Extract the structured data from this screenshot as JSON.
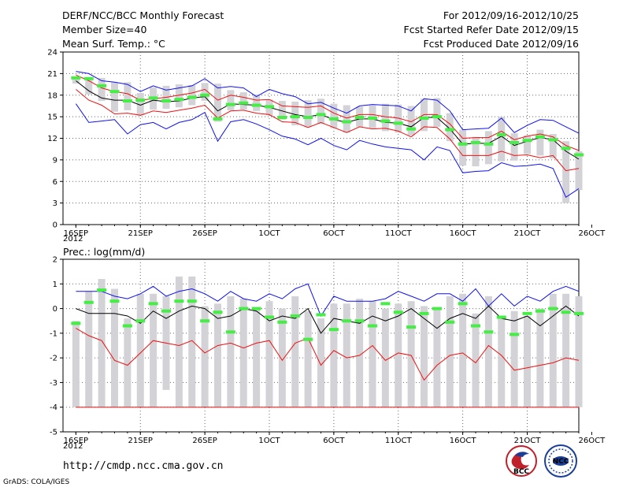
{
  "header": {
    "title": "DERF/NCC/BCC Monthly Forecast",
    "member_size": "Member Size=40",
    "variable": "Mean Surf. Temp.: °C",
    "period": "For 2012/09/16-2012/10/25",
    "fcst_started": "Fcst Started Refer Date 2012/09/15",
    "fcst_produced": "Fcst Produced Date 2012/09/16"
  },
  "footer": {
    "url": "http://cmdp.ncc.cma.gov.cn",
    "grads": "GrADS: COLA/IGES",
    "logo_bcc_text": "BCC",
    "logo_ncc_text": "NCC"
  },
  "colors": {
    "box": "#d3d3d7",
    "median": "#44ee44",
    "mean": "#000000",
    "upper": "#1010ee",
    "lower": "#ee1010",
    "grid": "#666666"
  },
  "chart_data": [
    {
      "type": "line",
      "title": "Mean Surf. Temp.: °C",
      "ylim": [
        0,
        24
      ],
      "yticks": [
        "0",
        "3",
        "6",
        "9",
        "12",
        "15",
        "18",
        "21",
        "24"
      ],
      "xlim": [
        0,
        40
      ],
      "xtick_labels": [
        "16SEP",
        "21SEP",
        "26SEP",
        "1OCT",
        "6OCT",
        "11OCT",
        "16OCT",
        "21OCT",
        "26OCT"
      ],
      "x_sub_label": "2012",
      "grid": true,
      "x": [
        1,
        2,
        3,
        4,
        5,
        6,
        7,
        8,
        9,
        10,
        11,
        12,
        13,
        14,
        15,
        16,
        17,
        18,
        19,
        20,
        21,
        22,
        23,
        24,
        25,
        26,
        27,
        28,
        29,
        30,
        31,
        32,
        33,
        34,
        35,
        36,
        37,
        38,
        39,
        40
      ],
      "series": [
        {
          "name": "max",
          "color": "#1010ee",
          "values": [
            21.3,
            21.0,
            20.0,
            19.8,
            19.5,
            18.5,
            19.3,
            18.7,
            19.0,
            19.3,
            20.3,
            19.0,
            19.2,
            19.0,
            17.8,
            18.8,
            18.2,
            17.8,
            16.8,
            17.0,
            16.2,
            15.5,
            16.5,
            16.7,
            16.6,
            16.5,
            15.8,
            17.5,
            17.3,
            15.8,
            13.2,
            13.3,
            13.4,
            14.8,
            12.8,
            13.8,
            14.6,
            14.5,
            13.6,
            12.7
          ]
        },
        {
          "name": "upper",
          "color": "#ee1010",
          "values": [
            20.8,
            20.0,
            19.0,
            18.5,
            18.2,
            17.3,
            17.5,
            17.7,
            18.0,
            18.3,
            18.8,
            17.3,
            18.0,
            17.7,
            17.3,
            17.4,
            16.5,
            16.4,
            16.3,
            16.5,
            15.5,
            14.8,
            15.3,
            15.3,
            15.0,
            14.8,
            14.3,
            15.3,
            15.3,
            14.0,
            12.0,
            12.1,
            12.1,
            13.0,
            11.8,
            12.3,
            12.6,
            12.2,
            11.0,
            10.3
          ]
        },
        {
          "name": "mean",
          "color": "#000000",
          "values": [
            20.0,
            18.6,
            17.6,
            17.3,
            17.3,
            16.6,
            17.3,
            17.1,
            17.2,
            17.6,
            17.8,
            15.8,
            16.8,
            16.7,
            16.6,
            16.3,
            15.8,
            15.3,
            15.0,
            15.3,
            14.6,
            14.2,
            14.7,
            14.7,
            14.2,
            14.1,
            13.6,
            14.9,
            14.9,
            13.3,
            11.2,
            11.3,
            11.3,
            12.3,
            11.0,
            11.6,
            12.1,
            11.8,
            10.2,
            9.1
          ]
        },
        {
          "name": "lower",
          "color": "#ee1010",
          "values": [
            18.8,
            17.3,
            16.6,
            15.4,
            15.5,
            15.2,
            15.8,
            15.6,
            15.9,
            16.2,
            16.6,
            14.8,
            15.8,
            15.9,
            15.5,
            15.3,
            14.3,
            14.2,
            13.5,
            14.2,
            13.5,
            12.8,
            13.6,
            13.3,
            13.4,
            13.0,
            12.2,
            13.6,
            13.5,
            11.9,
            9.6,
            9.6,
            9.6,
            10.2,
            9.6,
            9.7,
            9.3,
            9.6,
            7.5,
            7.8
          ]
        },
        {
          "name": "min",
          "color": "#1010ee",
          "values": [
            16.8,
            14.2,
            14.4,
            14.6,
            12.6,
            13.9,
            14.2,
            13.3,
            14.2,
            14.6,
            15.6,
            11.6,
            14.3,
            14.6,
            14.0,
            13.2,
            12.3,
            11.9,
            11.1,
            12.0,
            11.0,
            10.4,
            11.7,
            11.2,
            10.8,
            10.6,
            10.4,
            9.0,
            10.8,
            10.3,
            7.2,
            7.4,
            7.5,
            8.6,
            8.1,
            8.2,
            8.4,
            7.8,
            3.8,
            5.0
          ]
        }
      ],
      "box": {
        "name": "inter-quartile",
        "color": "#d3d3d7",
        "low": [
          19.6,
          18.1,
          17.2,
          15.7,
          15.9,
          15.2,
          16.0,
          16.1,
          16.3,
          16.6,
          17.2,
          14.3,
          15.9,
          16.0,
          15.8,
          15.2,
          14.6,
          13.8,
          13.6,
          14.0,
          13.4,
          12.8,
          13.6,
          13.4,
          13.0,
          12.8,
          12.4,
          13.0,
          13.6,
          11.6,
          8.2,
          8.1,
          8.4,
          8.8,
          8.9,
          9.8,
          9.6,
          9.2,
          3.0,
          4.8
        ],
        "high": [
          20.6,
          20.1,
          20.4,
          19.8,
          19.8,
          18.3,
          19.1,
          19.3,
          19.5,
          19.4,
          19.7,
          19.6,
          18.7,
          18.4,
          18.1,
          17.4,
          17.2,
          17.1,
          17.3,
          17.5,
          16.8,
          16.6,
          16.4,
          16.6,
          16.8,
          16.7,
          16.5,
          17.5,
          17.6,
          15.5,
          13.2,
          12.2,
          13.0,
          15.0,
          12.7,
          12.4,
          13.2,
          12.6,
          11.6,
          10.2
        ]
      },
      "median": [
        20.4,
        20.3,
        19.3,
        18.5,
        17.2,
        17.3,
        17.6,
        17.2,
        17.4,
        17.7,
        18.0,
        14.7,
        16.7,
        16.9,
        16.6,
        16.4,
        14.9,
        15.0,
        14.9,
        15.3,
        14.7,
        14.3,
        14.9,
        14.8,
        14.4,
        14.1,
        13.3,
        14.8,
        15.0,
        13.2,
        11.2,
        11.4,
        11.2,
        12.5,
        11.4,
        11.7,
        12.2,
        11.8,
        10.6,
        9.7
      ]
    },
    {
      "type": "line",
      "title": "Prec.: log(mm/d)",
      "ylim": [
        -5,
        2
      ],
      "yticks": [
        "-5",
        "-4",
        "-3",
        "-2",
        "-1",
        "0",
        "1",
        "2"
      ],
      "xlim": [
        0,
        40
      ],
      "xtick_labels": [
        "16SEP",
        "21SEP",
        "26SEP",
        "1OCT",
        "6OCT",
        "11OCT",
        "16OCT",
        "21OCT",
        "26OCT"
      ],
      "x_sub_label": "2012",
      "grid": true,
      "x": [
        1,
        2,
        3,
        4,
        5,
        6,
        7,
        8,
        9,
        10,
        11,
        12,
        13,
        14,
        15,
        16,
        17,
        18,
        19,
        20,
        21,
        22,
        23,
        24,
        25,
        26,
        27,
        28,
        29,
        30,
        31,
        32,
        33,
        34,
        35,
        36,
        37,
        38,
        39,
        40
      ],
      "series": [
        {
          "name": "upper",
          "color": "#1010ee",
          "values": [
            0.7,
            0.7,
            0.7,
            0.5,
            0.4,
            0.6,
            0.9,
            0.5,
            0.7,
            0.8,
            0.6,
            0.3,
            0.7,
            0.4,
            0.3,
            0.6,
            0.4,
            0.8,
            1.0,
            -0.3,
            0.5,
            0.3,
            0.3,
            0.3,
            0.4,
            0.7,
            0.5,
            0.3,
            0.6,
            0.6,
            0.3,
            0.8,
            0.1,
            0.6,
            0.1,
            0.5,
            0.3,
            0.7,
            0.9,
            0.7
          ]
        },
        {
          "name": "mean",
          "color": "#000000",
          "values": [
            0.0,
            -0.2,
            -0.2,
            -0.2,
            -0.3,
            -0.6,
            -0.1,
            -0.4,
            -0.1,
            0.1,
            0.0,
            -0.4,
            -0.3,
            0.0,
            -0.1,
            -0.5,
            -0.3,
            -0.4,
            0.0,
            -1.0,
            -0.4,
            -0.5,
            -0.6,
            -0.3,
            -0.5,
            -0.3,
            0.0,
            -0.4,
            -0.8,
            -0.4,
            -0.2,
            -0.4,
            0.1,
            -0.4,
            -0.5,
            -0.3,
            -0.7,
            -0.3,
            0.1,
            -0.3
          ]
        },
        {
          "name": "lower",
          "color": "#ee1010",
          "values": [
            -0.8,
            -1.1,
            -1.3,
            -2.1,
            -2.3,
            -1.8,
            -1.3,
            -1.4,
            -1.5,
            -1.3,
            -1.8,
            -1.5,
            -1.4,
            -1.6,
            -1.4,
            -1.3,
            -2.1,
            -1.4,
            -1.2,
            -2.3,
            -1.7,
            -2.0,
            -1.9,
            -1.5,
            -2.1,
            -1.8,
            -1.9,
            -2.9,
            -2.3,
            -1.9,
            -1.8,
            -2.2,
            -1.5,
            -1.9,
            -2.5,
            -2.4,
            -2.3,
            -2.2,
            -2.0,
            -2.1
          ]
        },
        {
          "name": "min",
          "color": "#ee1010",
          "values": [
            -4,
            -4,
            -4,
            -4,
            -4,
            -4,
            -4,
            -4,
            -4,
            -4,
            -4,
            -4,
            -4,
            -4,
            -4,
            -4,
            -4,
            -4,
            -4,
            -4,
            -4,
            -4,
            -4,
            -4,
            -4,
            -4,
            -4,
            -4,
            -4,
            -4,
            -4,
            -4,
            -4,
            -4,
            -4,
            -4,
            -4,
            -4,
            -4,
            -4
          ]
        }
      ],
      "box": {
        "name": "inter-quartile",
        "color": "#d3d3d7",
        "low": [
          -4,
          -4,
          -4,
          -4,
          -4,
          -4,
          -4,
          -3.3,
          -4,
          -4,
          -4,
          -4,
          -4,
          -4,
          -4,
          -4,
          -4,
          -4,
          -4,
          -4,
          -4,
          -4,
          -4,
          -4,
          -4,
          -4,
          -4,
          -4,
          -4,
          -4,
          -4,
          -4,
          -4,
          -4,
          -4,
          -4,
          -4,
          -4,
          -4,
          -4
        ],
        "high": [
          -0.5,
          0.7,
          1.2,
          0.8,
          -0.4,
          0.6,
          0.6,
          0.5,
          1.3,
          1.3,
          0.1,
          0.2,
          0.5,
          0.4,
          0.0,
          0.3,
          0.0,
          0.5,
          -0.1,
          -0.4,
          0.2,
          0.2,
          0.4,
          0.3,
          0.0,
          0.2,
          0.3,
          0.1,
          0.0,
          0.5,
          0.6,
          -0.2,
          0.5,
          -0.4,
          -0.1,
          -0.3,
          0.0,
          0.6,
          0.6,
          0.5
        ]
      },
      "median": [
        -0.6,
        0.25,
        0.75,
        0.3,
        -0.7,
        -0.5,
        0.2,
        -0.1,
        0.3,
        0.3,
        -0.5,
        -0.15,
        -0.95,
        0.0,
        0.0,
        -0.35,
        -0.55,
        -0.3,
        -1.25,
        -0.25,
        -0.85,
        -0.5,
        -0.5,
        -0.7,
        0.2,
        -0.15,
        -0.75,
        -0.2,
        0.0,
        -0.55,
        0.2,
        -0.7,
        -0.95,
        -0.35,
        -1.05,
        -0.2,
        -0.1,
        0.0,
        -0.15,
        -0.2
      ]
    }
  ]
}
